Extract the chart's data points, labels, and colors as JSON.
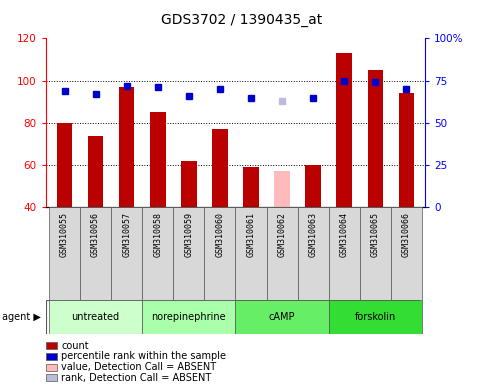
{
  "title": "GDS3702 / 1390435_at",
  "samples": [
    "GSM310055",
    "GSM310056",
    "GSM310057",
    "GSM310058",
    "GSM310059",
    "GSM310060",
    "GSM310061",
    "GSM310062",
    "GSM310063",
    "GSM310064",
    "GSM310065",
    "GSM310066"
  ],
  "bar_values": [
    80,
    74,
    97,
    85,
    62,
    77,
    59,
    57,
    60,
    113,
    105,
    94
  ],
  "bar_absent": [
    false,
    false,
    false,
    false,
    false,
    false,
    false,
    true,
    false,
    false,
    false,
    false
  ],
  "rank_values": [
    69,
    67,
    72,
    71,
    66,
    70,
    65,
    63,
    65,
    75,
    74,
    70
  ],
  "rank_absent": [
    false,
    false,
    false,
    false,
    false,
    false,
    false,
    true,
    false,
    false,
    false,
    false
  ],
  "bar_color_normal": "#bb0000",
  "bar_color_absent": "#ffbbbb",
  "rank_color_normal": "#0000cc",
  "rank_color_absent": "#bbbbdd",
  "ylim_left": [
    40,
    120
  ],
  "ylim_right": [
    0,
    100
  ],
  "yticks_left": [
    40,
    60,
    80,
    100,
    120
  ],
  "yticks_right": [
    0,
    25,
    50,
    75,
    100
  ],
  "ytick_labels_right": [
    "0",
    "25",
    "50",
    "75",
    "100%"
  ],
  "agent_groups": [
    {
      "label": "untreated",
      "start": 0,
      "end": 3,
      "color": "#ccffcc"
    },
    {
      "label": "norepinephrine",
      "start": 3,
      "end": 6,
      "color": "#aaffaa"
    },
    {
      "label": "cAMP",
      "start": 6,
      "end": 9,
      "color": "#66ee66"
    },
    {
      "label": "forskolin",
      "start": 9,
      "end": 12,
      "color": "#33dd33"
    }
  ],
  "legend_items": [
    {
      "label": "count",
      "color": "#bb0000"
    },
    {
      "label": "percentile rank within the sample",
      "color": "#0000cc"
    },
    {
      "label": "value, Detection Call = ABSENT",
      "color": "#ffbbbb"
    },
    {
      "label": "rank, Detection Call = ABSENT",
      "color": "#bbbbdd"
    }
  ],
  "bar_width": 0.5
}
